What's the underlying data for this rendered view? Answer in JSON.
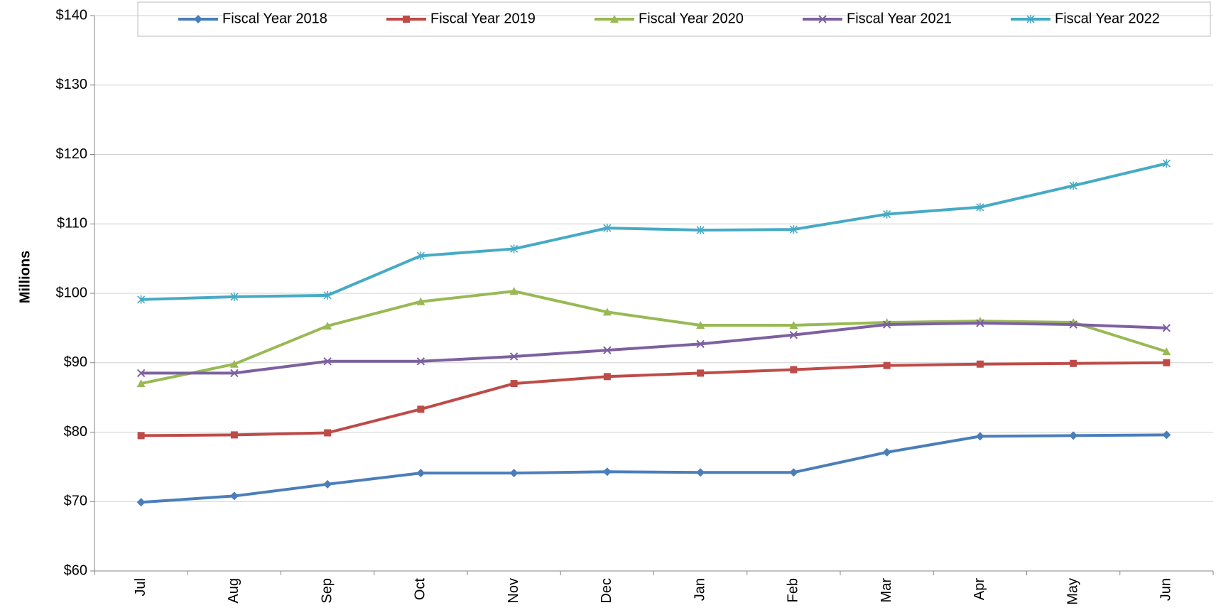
{
  "chart_data": {
    "type": "line",
    "y_label": "Millions",
    "categories": [
      "Jul",
      "Aug",
      "Sep",
      "Oct",
      "Nov",
      "Dec",
      "Jan",
      "Feb",
      "Mar",
      "Apr",
      "May",
      "Jun"
    ],
    "series": [
      {
        "name": "Fiscal Year 2018",
        "color": "#4a7ebb",
        "marker": "diamond",
        "values": [
          69.9,
          70.8,
          72.5,
          74.1,
          74.1,
          74.3,
          74.2,
          74.2,
          77.1,
          79.4,
          79.5,
          79.6
        ]
      },
      {
        "name": "Fiscal Year 2019",
        "color": "#be4b48",
        "marker": "square",
        "values": [
          79.5,
          79.6,
          79.9,
          83.3,
          87.0,
          88.0,
          88.5,
          89.0,
          89.6,
          89.8,
          89.9,
          90.0
        ]
      },
      {
        "name": "Fiscal Year 2020",
        "color": "#98b954",
        "marker": "triangle",
        "values": [
          87.0,
          89.8,
          95.3,
          98.8,
          100.3,
          97.3,
          95.4,
          95.4,
          95.8,
          96.0,
          95.8,
          91.6
        ]
      },
      {
        "name": "Fiscal Year 2021",
        "color": "#7d60a0",
        "marker": "x",
        "values": [
          88.5,
          88.5,
          90.2,
          90.2,
          90.9,
          91.8,
          92.7,
          94.0,
          95.5,
          95.7,
          95.5,
          95.0
        ]
      },
      {
        "name": "Fiscal Year 2022",
        "color": "#46aac5",
        "marker": "star",
        "values": [
          99.1,
          99.5,
          99.7,
          105.4,
          106.4,
          109.4,
          109.1,
          109.2,
          111.4,
          112.4,
          115.5,
          118.7
        ]
      }
    ],
    "ylim": [
      60,
      140
    ],
    "yticks": [
      {
        "value": 60,
        "label": "$60"
      },
      {
        "value": 70,
        "label": "$70"
      },
      {
        "value": 80,
        "label": "$80"
      },
      {
        "value": 90,
        "label": "$90"
      },
      {
        "value": 100,
        "label": "$100"
      },
      {
        "value": 110,
        "label": "$110"
      },
      {
        "value": 120,
        "label": "$120"
      },
      {
        "value": 130,
        "label": "$130"
      },
      {
        "value": 140,
        "label": "$140"
      }
    ],
    "grid": true,
    "legend": "top"
  }
}
